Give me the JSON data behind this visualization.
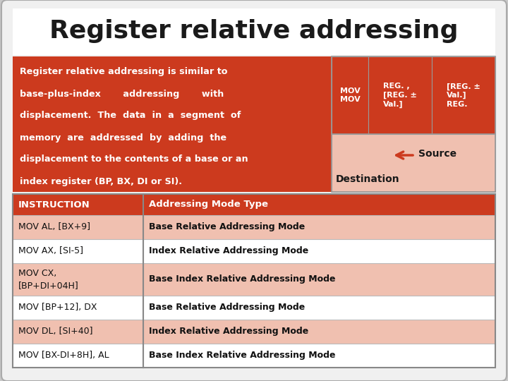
{
  "title": "Register relative addressing",
  "card_bg": "#f0f0f0",
  "card_border": "#aaaaaa",
  "outer_bg": "#c8c8c8",
  "title_bg": "#ffffff",
  "orange_bg": "#cc3a1e",
  "orange_light": "#f0c0b0",
  "header_color": "#cc3a1e",
  "row_alt": "#f0c0b0",
  "row_white": "#ffffff",
  "desc_lines": [
    "Register relative addressing is similar to",
    "base-plus-index       addressing       with",
    "displacement.  The  data  in  a  segment  of",
    "memory  are  addressed  by  adding  the",
    "displacement to the contents of a base or an",
    "index register (BP, BX, DI or SI)."
  ],
  "box_headers": [
    "MOV\nMOV",
    "REG. ,\n[REG. ±\nVal.]",
    "[REG. ±\nVal.]\nREG."
  ],
  "source_label": "Source",
  "dest_label": "Destination",
  "table_headers": [
    "INSTRUCTION",
    "Addressing Mode Type"
  ],
  "table_rows": [
    [
      "MOV AL, [BX+9]",
      "Base Relative Addressing Mode"
    ],
    [
      "MOV AX, [SI-5]",
      "Index Relative Addressing Mode"
    ],
    [
      "MOV CX,\n[BP+DI+04H]",
      "Base Index Relative Addressing Mode"
    ],
    [
      "MOV [BP+12], DX",
      "Base Relative Addressing Mode"
    ],
    [
      "MOV DL, [SI+40]",
      "Index Relative Addressing Mode"
    ],
    [
      "MOV [BX-DI+8H], AL",
      "Base Index Relative Addressing Mode"
    ]
  ]
}
